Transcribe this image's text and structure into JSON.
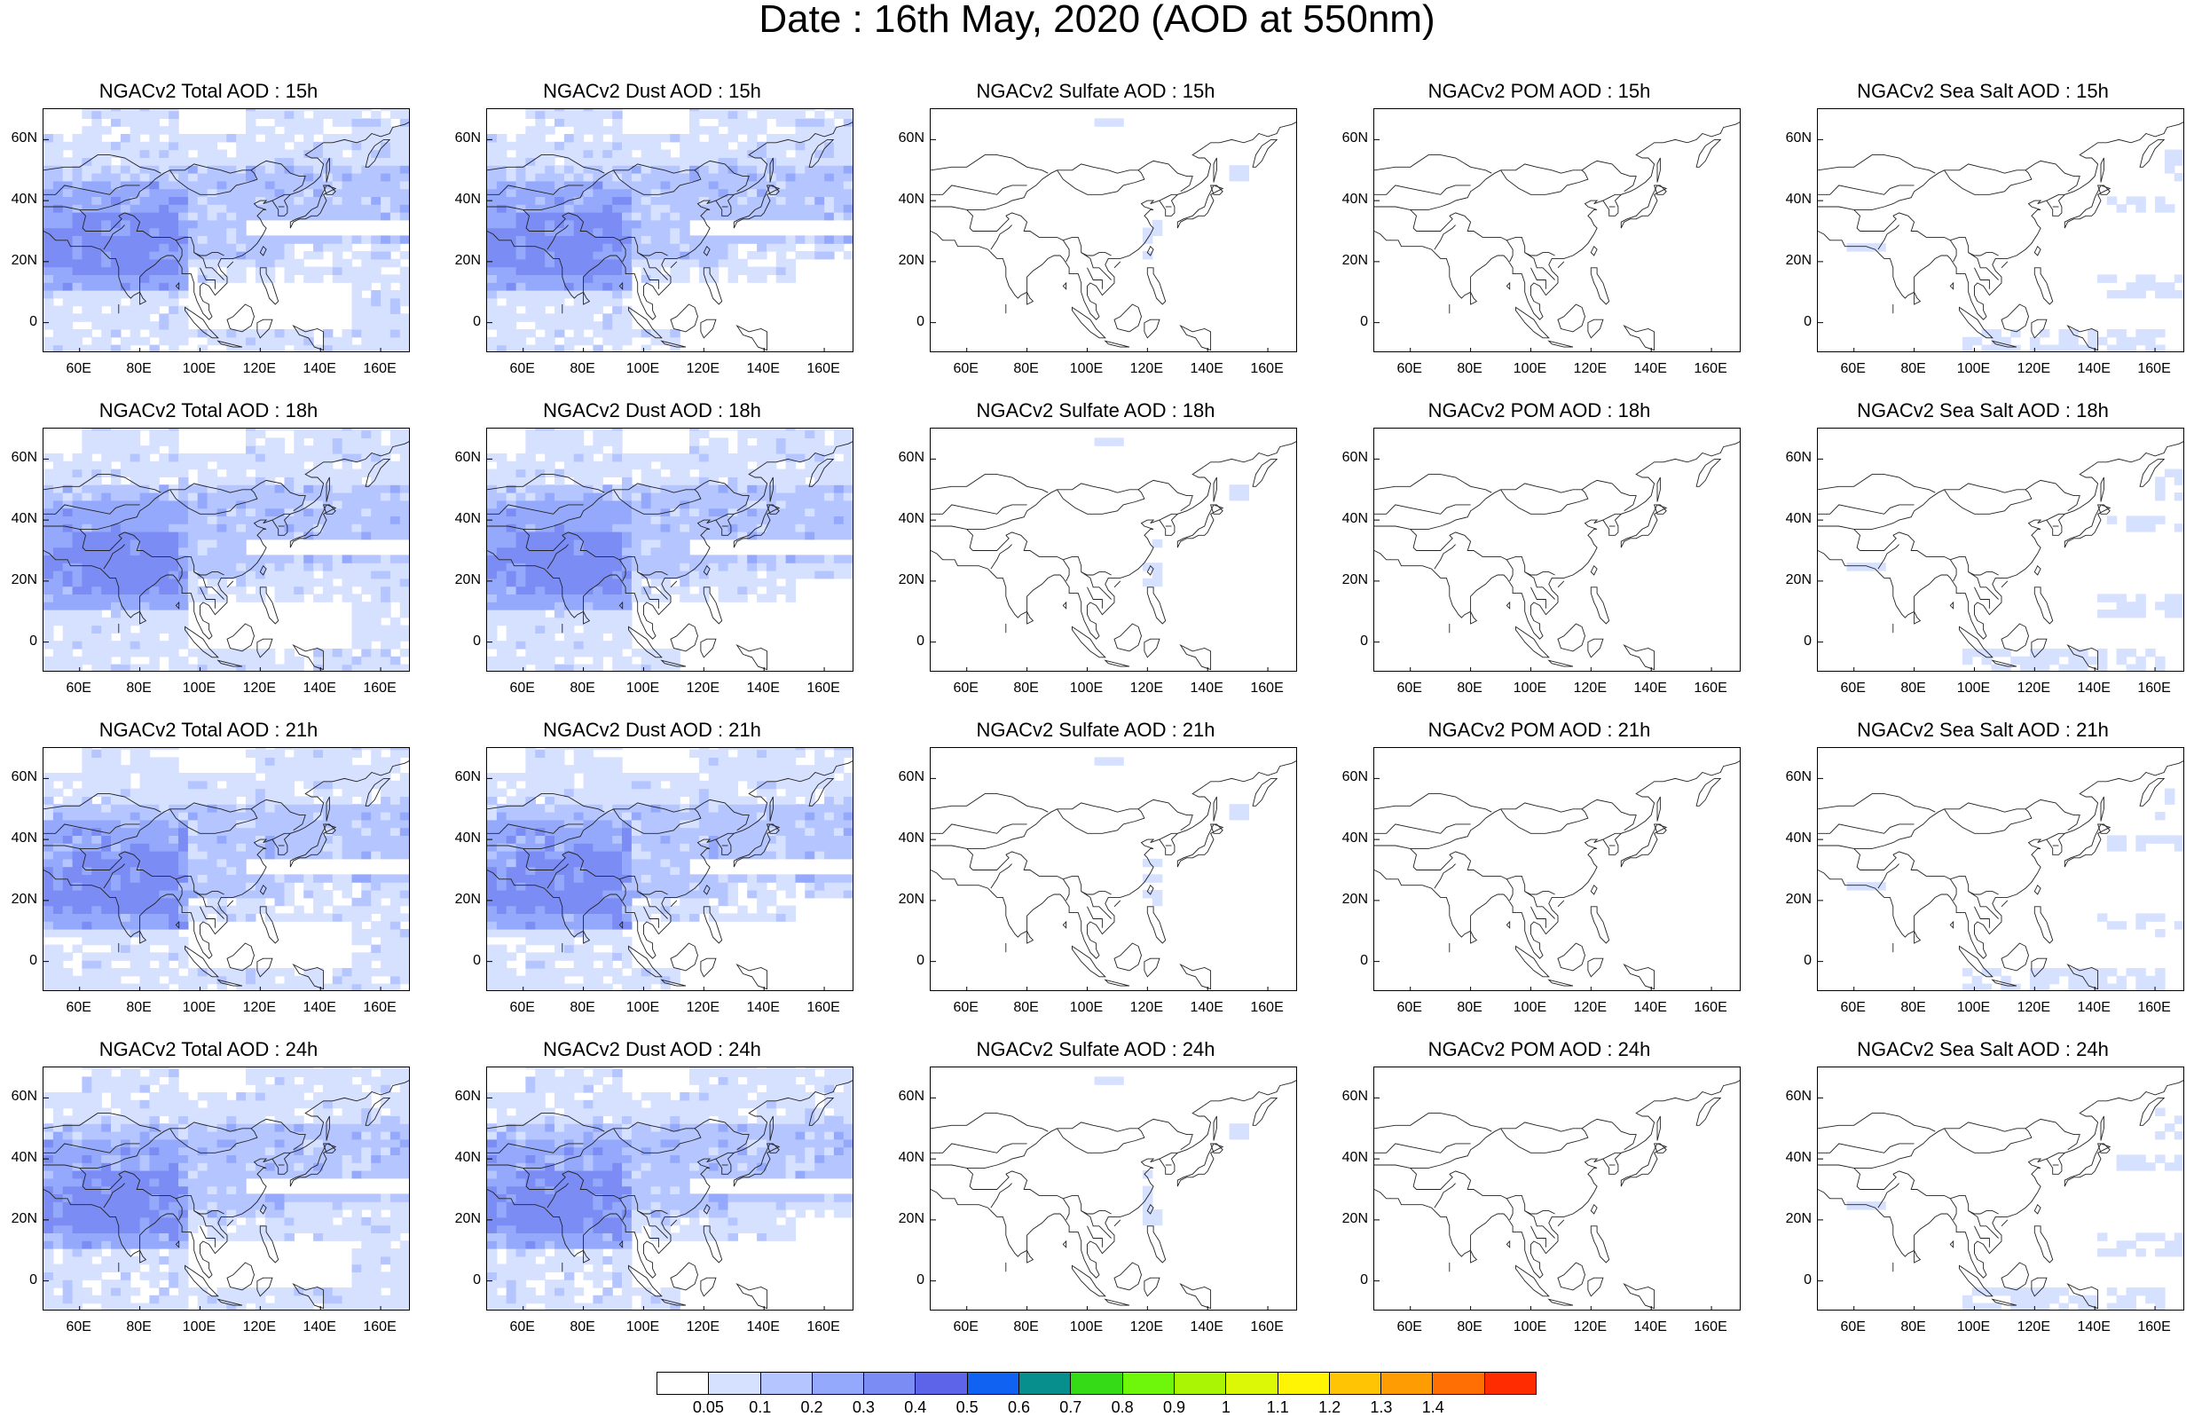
{
  "title": "Date : 16th May, 2020 (AOD at 550nm)",
  "panels": [
    {
      "title": "NGACv2 Total AOD : 15h",
      "species": "total"
    },
    {
      "title": "NGACv2 Dust AOD : 15h",
      "species": "dust"
    },
    {
      "title": "NGACv2 Sulfate AOD : 15h",
      "species": "sulfate"
    },
    {
      "title": "NGACv2 POM AOD : 15h",
      "species": "pom"
    },
    {
      "title": "NGACv2 Sea Salt AOD : 15h",
      "species": "seasalt"
    },
    {
      "title": "NGACv2 Total AOD : 18h",
      "species": "total"
    },
    {
      "title": "NGACv2 Dust AOD : 18h",
      "species": "dust"
    },
    {
      "title": "NGACv2 Sulfate AOD : 18h",
      "species": "sulfate"
    },
    {
      "title": "NGACv2 POM AOD : 18h",
      "species": "pom"
    },
    {
      "title": "NGACv2 Sea Salt AOD : 18h",
      "species": "seasalt"
    },
    {
      "title": "NGACv2 Total AOD : 21h",
      "species": "total"
    },
    {
      "title": "NGACv2 Dust AOD : 21h",
      "species": "dust"
    },
    {
      "title": "NGACv2 Sulfate AOD : 21h",
      "species": "sulfate"
    },
    {
      "title": "NGACv2 POM AOD : 21h",
      "species": "pom"
    },
    {
      "title": "NGACv2 Sea Salt AOD : 21h",
      "species": "seasalt"
    },
    {
      "title": "NGACv2 Total AOD : 24h",
      "species": "total"
    },
    {
      "title": "NGACv2 Dust AOD : 24h",
      "species": "dust"
    },
    {
      "title": "NGACv2 Sulfate AOD : 24h",
      "species": "sulfate"
    },
    {
      "title": "NGACv2 POM AOD : 24h",
      "species": "pom"
    },
    {
      "title": "NGACv2 Sea Salt  AOD : 24h",
      "species": "seasalt"
    }
  ],
  "axes": {
    "lat_labels": [
      "60N",
      "40N",
      "20N",
      "0"
    ],
    "lat_values": [
      60,
      40,
      20,
      0
    ],
    "lon_labels": [
      "60E",
      "80E",
      "100E",
      "120E",
      "140E",
      "160E"
    ],
    "lon_values": [
      60,
      80,
      100,
      120,
      140,
      160
    ],
    "lon_range": [
      48,
      170
    ],
    "lat_range": [
      -10,
      70
    ]
  },
  "colorbar": {
    "colors": [
      "#ffffff",
      "#d6e0ff",
      "#b5c5ff",
      "#95a9fc",
      "#7b8df4",
      "#5d64ea",
      "#0f62f2",
      "#078f8e",
      "#34db16",
      "#6ef60b",
      "#a9f504",
      "#ddf807",
      "#fff404",
      "#ffc504",
      "#fe9c03",
      "#ff6f03",
      "#fe2c00"
    ],
    "labels": [
      "0.05",
      "0.1",
      "0.2",
      "0.3",
      "0.4",
      "0.5",
      "0.6",
      "0.7",
      "0.8",
      "0.9",
      "1",
      "1.1",
      "1.2",
      "1.3",
      "1.4"
    ]
  }
}
